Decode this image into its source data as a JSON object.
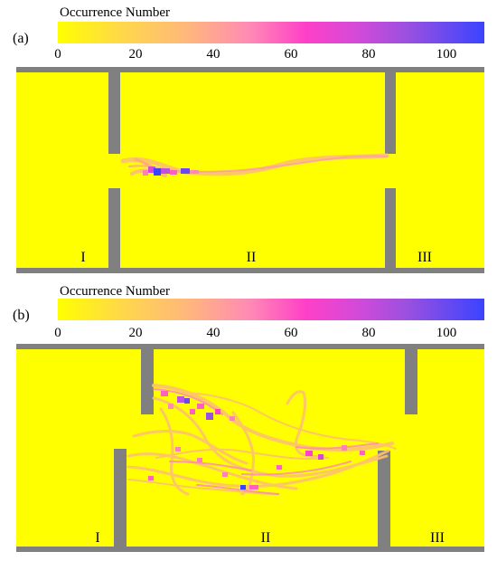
{
  "chart_data": [
    {
      "type": "heatmap",
      "panel_label": "(a)",
      "colorbar": {
        "title": "Occurrence Number",
        "ticks": [
          "0",
          "20",
          "40",
          "60",
          "80",
          "100"
        ],
        "range": [
          0,
          110
        ],
        "colors": [
          "#ffff00",
          "#ffb87a",
          "#ff40c8",
          "#9a50e0",
          "#3a44ff"
        ]
      },
      "room_labels": [
        "I",
        "II",
        "III"
      ],
      "colors": {
        "floor": "#ffff00",
        "wall": "#808080"
      }
    },
    {
      "type": "heatmap",
      "panel_label": "(b)",
      "colorbar": {
        "title": "Occurrence Number",
        "ticks": [
          "0",
          "20",
          "40",
          "60",
          "80",
          "100"
        ],
        "range": [
          0,
          110
        ],
        "colors": [
          "#ffff00",
          "#ffb87a",
          "#ff40c8",
          "#9a50e0",
          "#3a44ff"
        ]
      },
      "room_labels": [
        "I",
        "II",
        "III"
      ],
      "colors": {
        "floor": "#ffff00",
        "wall": "#808080"
      }
    }
  ]
}
